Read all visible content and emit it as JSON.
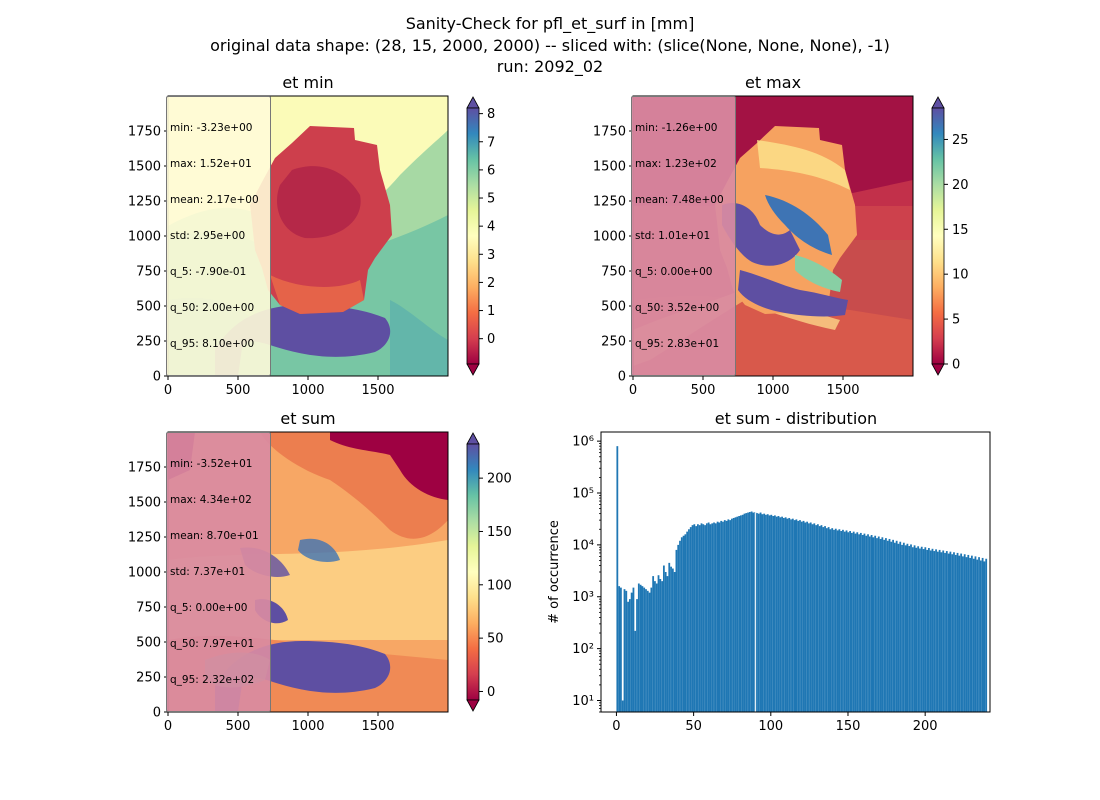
{
  "figure": {
    "title_lines": [
      "Sanity-Check for pfl_et_surf in [mm]",
      "original data shape: (28, 15, 2000, 2000) -- sliced with: (slice(None, None, None), -1)",
      "run: 2092_02"
    ]
  },
  "colors": {
    "histogram_bar": "#1f77b4",
    "stats_box_min": "#fffbd8",
    "stats_box_pink": "#d98ba2",
    "colormap": "Spectral"
  },
  "chart_data": [
    {
      "type": "heatmap",
      "title": "et min",
      "colormap": "Spectral",
      "xlim": [
        0,
        2000
      ],
      "ylim": [
        0,
        2000
      ],
      "xticks": [
        0,
        500,
        1000,
        1500
      ],
      "yticks": [
        0,
        250,
        500,
        750,
        1000,
        1250,
        1500,
        1750
      ],
      "colorbar": {
        "range": [
          -0.9,
          8.2
        ],
        "ticks": [
          0,
          1,
          2,
          3,
          4,
          5,
          6,
          7,
          8
        ],
        "extend": "both"
      },
      "stats": [
        "min: -3.23e+00",
        "max: 1.52e+01",
        "mean: 2.17e+00",
        "std: 2.95e+00",
        "q_5: -7.90e-01",
        "q_50: 2.00e+00",
        "q_95: 8.10e+00"
      ]
    },
    {
      "type": "heatmap",
      "title": "et max",
      "colormap": "Spectral",
      "xlim": [
        0,
        2000
      ],
      "ylim": [
        0,
        2000
      ],
      "xticks": [
        0,
        500,
        1000,
        1500
      ],
      "yticks": [
        0,
        250,
        500,
        750,
        1000,
        1250,
        1500,
        1750
      ],
      "colorbar": {
        "range": [
          0,
          28.5
        ],
        "ticks": [
          0,
          5,
          10,
          15,
          20,
          25
        ],
        "extend": "both"
      },
      "stats": [
        "min: -1.26e+00",
        "max: 1.23e+02",
        "mean: 7.48e+00",
        "std: 1.01e+01",
        "q_5: 0.00e+00",
        "q_50: 3.52e+00",
        "q_95: 2.83e+01"
      ]
    },
    {
      "type": "heatmap",
      "title": "et sum",
      "colormap": "Spectral",
      "xlim": [
        0,
        2000
      ],
      "ylim": [
        0,
        2000
      ],
      "xticks": [
        0,
        500,
        1000,
        1500
      ],
      "yticks": [
        0,
        250,
        500,
        750,
        1000,
        1250,
        1500,
        1750
      ],
      "colorbar": {
        "range": [
          -8,
          232
        ],
        "ticks": [
          0,
          50,
          100,
          150,
          200
        ],
        "extend": "both"
      },
      "stats": [
        "min: -3.52e+01",
        "max: 4.34e+02",
        "mean: 8.70e+01",
        "std: 7.37e+01",
        "q_5: 0.00e+00",
        "q_50: 7.97e+01",
        "q_95: 2.32e+02"
      ]
    },
    {
      "type": "bar",
      "title": "et sum - distribution",
      "xlabel": "",
      "ylabel": "# of occurrence",
      "yscale": "log",
      "xlim": [
        -10,
        242
      ],
      "ylim": [
        6,
        1500000
      ],
      "xticks": [
        0,
        50,
        100,
        150,
        200
      ],
      "yticks": [
        10,
        100,
        1000,
        10000,
        100000,
        1000000
      ],
      "yticklabels": [
        "10¹",
        "10²",
        "10³",
        "10⁴",
        "10⁵",
        "10⁶"
      ],
      "bins": {
        "start": 0,
        "width": 1.16
      },
      "counts": [
        800000,
        1600,
        1500,
        10,
        1400,
        1300,
        800,
        900,
        1200,
        1500,
        220,
        900,
        1800,
        1700,
        1600,
        1500,
        1400,
        1300,
        1200,
        1500,
        2500,
        2000,
        1800,
        2600,
        2200,
        2000,
        4000,
        3000,
        2500,
        4500,
        3800,
        3500,
        3000,
        8000,
        10000,
        12000,
        14000,
        15000,
        16000,
        18000,
        20000,
        22000,
        24000,
        25000,
        23000,
        25000,
        24000,
        26000,
        25000,
        24000,
        26000,
        27000,
        25000,
        26000,
        27000,
        26000,
        28000,
        27000,
        29000,
        28000,
        30000,
        29000,
        31000,
        30000,
        32000,
        33000,
        34000,
        35000,
        36000,
        37000,
        38000,
        40000,
        41000,
        42000,
        43000,
        44000,
        42000,
        43000,
        41000,
        40000,
        42000,
        39000,
        40000,
        38000,
        39000,
        37000,
        38000,
        36000,
        37000,
        35000,
        36000,
        34000,
        35000,
        33000,
        34000,
        32000,
        33000,
        31000,
        32000,
        30000,
        31000,
        29000,
        30000,
        28000,
        29000,
        27000,
        28000,
        26000,
        27000,
        25000,
        26000,
        24000,
        25000,
        23000,
        24000,
        22000,
        23000,
        21000,
        22000,
        20000,
        21000,
        19500,
        20500,
        19000,
        20000,
        18500,
        19500,
        18000,
        19000,
        17500,
        18500,
        17000,
        18000,
        16500,
        17500,
        16000,
        17000,
        15500,
        16500,
        15000,
        16000,
        14500,
        15500,
        14000,
        15000,
        13500,
        14500,
        13000,
        14000,
        12500,
        13500,
        12000,
        13000,
        11500,
        12500,
        11000,
        12000,
        10500,
        11500,
        10000,
        11000,
        9800,
        10500,
        9500,
        10200,
        9000,
        9800,
        8800,
        9400,
        8500,
        9200,
        8300,
        9000,
        8000,
        8700,
        7800,
        8400,
        7600,
        8200,
        7400,
        8000,
        7200,
        7800,
        7000,
        7600,
        6800,
        7400,
        6600,
        7200,
        6400,
        7000,
        6200,
        6800,
        6000,
        6600,
        5800,
        6400,
        5600,
        6200,
        5400,
        6000,
        5200,
        5800,
        5000,
        5600,
        4800,
        5400
      ]
    }
  ]
}
